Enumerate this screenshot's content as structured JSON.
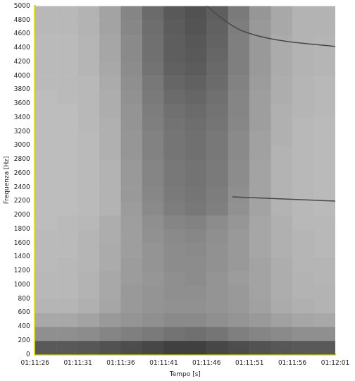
{
  "chart_data": {
    "type": "heatmap",
    "xlabel": "Tempo [s]",
    "ylabel": "Frequenza [Hz]",
    "xlim": [
      4286,
      4321
    ],
    "xticks": [
      {
        "value": 4286,
        "label": "01:11:26"
      },
      {
        "value": 4291,
        "label": "01:11:31"
      },
      {
        "value": 4296,
        "label": "01:11:36"
      },
      {
        "value": 4301,
        "label": "01:11:41"
      },
      {
        "value": 4306,
        "label": "01:11:46"
      },
      {
        "value": 4311,
        "label": "01:11:51"
      },
      {
        "value": 4316,
        "label": "01:11:56"
      },
      {
        "value": 4321,
        "label": "01:12:01"
      }
    ],
    "ylim": [
      0,
      5000
    ],
    "yticks": [
      0,
      200,
      400,
      600,
      800,
      1000,
      1200,
      1400,
      1600,
      1800,
      2000,
      2200,
      2400,
      2600,
      2800,
      3000,
      3200,
      3400,
      3600,
      3800,
      4000,
      4200,
      4400,
      4600,
      4800,
      5000
    ],
    "grid": false,
    "heatmap": {
      "x_edges": [
        4286,
        4288.5,
        4291,
        4293.5,
        4296,
        4298.5,
        4301,
        4303.5,
        4306,
        4308.5,
        4311,
        4313.5,
        4316,
        4318.5,
        4321
      ],
      "y_edges": [
        0,
        200,
        400,
        600,
        800,
        1000,
        1200,
        1400,
        1600,
        1800,
        2000,
        2200,
        2400,
        2600,
        2800,
        3000,
        3200,
        3400,
        3600,
        3800,
        4000,
        4200,
        4400,
        4600,
        4800,
        5000
      ],
      "values": [
        [
          35,
          35,
          34,
          32,
          30,
          28,
          25,
          25,
          28,
          30,
          32,
          34,
          35,
          35
        ],
        [
          56,
          56,
          55,
          52,
          50,
          48,
          45,
          44,
          46,
          50,
          52,
          54,
          56,
          56
        ],
        [
          66,
          66,
          64,
          60,
          58,
          56,
          54,
          54,
          56,
          58,
          60,
          63,
          65,
          66
        ],
        [
          71,
          71,
          69,
          65,
          60,
          58,
          57,
          57,
          58,
          60,
          63,
          67,
          69,
          70
        ],
        [
          72,
          72,
          70,
          66,
          60,
          58,
          56,
          56,
          58,
          60,
          64,
          68,
          70,
          70
        ],
        [
          72,
          72,
          70,
          66,
          61,
          59,
          56,
          55,
          58,
          61,
          64,
          68,
          70,
          71
        ],
        [
          73,
          72,
          71,
          67,
          61,
          58,
          55,
          55,
          57,
          60,
          64,
          68,
          71,
          71
        ],
        [
          73,
          73,
          71,
          67,
          62,
          58,
          55,
          54,
          57,
          60,
          65,
          69,
          71,
          72
        ],
        [
          73,
          73,
          71,
          68,
          62,
          57,
          54,
          53,
          56,
          60,
          65,
          69,
          71,
          72
        ],
        [
          74,
          73,
          72,
          68,
          62,
          56,
          52,
          51,
          55,
          59,
          65,
          69,
          72,
          72
        ],
        [
          74,
          74,
          73,
          70,
          61,
          54,
          49,
          47,
          50,
          57,
          64,
          70,
          72,
          73
        ],
        [
          74,
          74,
          73,
          70,
          60,
          53,
          48,
          46,
          49,
          56,
          64,
          70,
          72,
          73
        ],
        [
          74,
          74,
          73,
          70,
          60,
          52,
          47,
          45,
          48,
          55,
          64,
          70,
          72,
          73
        ],
        [
          74,
          74,
          73,
          70,
          60,
          52,
          47,
          45,
          48,
          55,
          64,
          70,
          72,
          73
        ],
        [
          74,
          74,
          73,
          69,
          59,
          51,
          46,
          44,
          47,
          54,
          63,
          70,
          72,
          73
        ],
        [
          74,
          74,
          73,
          69,
          59,
          51,
          46,
          44,
          47,
          54,
          63,
          69,
          72,
          73
        ],
        [
          74,
          74,
          72,
          69,
          58,
          50,
          45,
          43,
          46,
          53,
          62,
          69,
          72,
          73
        ],
        [
          74,
          74,
          72,
          68,
          58,
          49,
          44,
          42,
          45,
          52,
          62,
          69,
          71,
          72
        ],
        [
          74,
          73,
          72,
          68,
          57,
          48,
          42,
          40,
          44,
          52,
          62,
          68,
          71,
          72
        ],
        [
          73,
          73,
          72,
          67,
          56,
          47,
          40,
          38,
          42,
          51,
          61,
          68,
          71,
          72
        ],
        [
          73,
          73,
          71,
          66,
          55,
          45,
          38,
          36,
          41,
          50,
          60,
          67,
          70,
          71
        ],
        [
          73,
          73,
          71,
          65,
          54,
          44,
          37,
          35,
          40,
          50,
          60,
          67,
          70,
          71
        ],
        [
          73,
          73,
          71,
          65,
          54,
          44,
          37,
          34,
          39,
          50,
          60,
          67,
          70,
          71
        ],
        [
          72,
          72,
          70,
          64,
          53,
          43,
          36,
          33,
          38,
          49,
          60,
          66,
          70,
          70
        ],
        [
          72,
          72,
          70,
          64,
          52,
          42,
          35,
          32,
          37,
          48,
          59,
          66,
          70,
          70
        ]
      ]
    },
    "series": [
      {
        "type": "line",
        "color": "#484848",
        "line_style": "solid",
        "x": [
          4309,
          4313,
          4317,
          4321
        ],
        "values": [
          2260,
          2240,
          2220,
          2200
        ]
      },
      {
        "type": "line",
        "color": "#484848",
        "line_style": "solid",
        "x": [
          4306,
          4308,
          4310,
          4313,
          4316,
          4321
        ],
        "values": [
          5000,
          4800,
          4650,
          4540,
          4480,
          4420
        ]
      }
    ]
  }
}
